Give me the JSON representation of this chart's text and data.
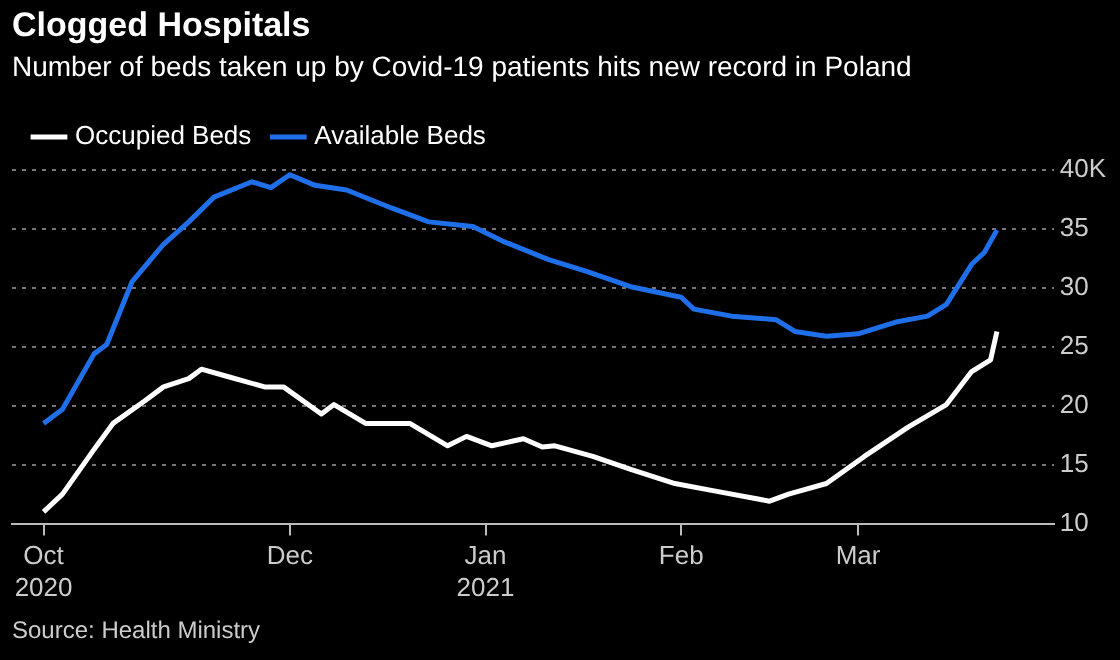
{
  "chart_data": {
    "type": "line",
    "title": "Clogged Hospitals",
    "subtitle": "Number of beds taken up by Covid-19 patients hits new record in Poland",
    "annotations": [
      "Source: Health Ministry"
    ],
    "xlim": [
      "2020-10-18",
      "2021-04-01"
    ],
    "xticks": [
      {
        "value": "2020-10-23",
        "label": "Oct 2020"
      },
      {
        "value": "2020-12-01",
        "label": "Dec"
      },
      {
        "value": "2021-01-01",
        "label": "Jan 2021"
      },
      {
        "value": "2021-02-01",
        "label": "Feb"
      },
      {
        "value": "2021-03-01",
        "label": "Mar"
      }
    ],
    "ylim": [
      10,
      40
    ],
    "yticks": [
      10,
      15,
      20,
      25,
      30,
      35,
      {
        "value": 40,
        "label": "40K"
      }
    ],
    "grid": "y",
    "legend": "top left",
    "marker": "none",
    "line_style": "solid",
    "series": [
      {
        "name": "Occupied Beds",
        "color": "#ffffff",
        "x": [
          "2020-10-23",
          "2020-10-26",
          "2020-10-31",
          "2020-11-03",
          "2020-11-08",
          "2020-11-11",
          "2020-11-15",
          "2020-11-17",
          "2020-11-21",
          "2020-11-27",
          "2020-11-30",
          "2020-12-06",
          "2020-12-08",
          "2020-12-13",
          "2020-12-20",
          "2020-12-26",
          "2020-12-29",
          "2021-01-02",
          "2021-01-07",
          "2021-01-10",
          "2021-01-12",
          "2021-01-18",
          "2021-01-24",
          "2021-01-31",
          "2021-02-06",
          "2021-02-15",
          "2021-02-18",
          "2021-02-24",
          "2021-03-02",
          "2021-03-09",
          "2021-03-15",
          "2021-03-19",
          "2021-03-22",
          "2021-03-23"
        ],
        "values": [
          11.0,
          12.5,
          16.3,
          18.5,
          20.4,
          21.6,
          22.3,
          23.1,
          22.5,
          21.6,
          21.6,
          19.3,
          20.1,
          18.5,
          18.5,
          16.6,
          17.4,
          16.6,
          17.2,
          16.5,
          16.6,
          15.7,
          14.6,
          13.4,
          12.8,
          11.9,
          12.5,
          13.4,
          15.7,
          18.2,
          20.1,
          22.9,
          23.9,
          26.3
        ]
      },
      {
        "name": "Available Beds",
        "color": "#1f6fe8",
        "x": [
          "2020-10-23",
          "2020-10-26",
          "2020-10-31",
          "2020-11-02",
          "2020-11-06",
          "2020-11-11",
          "2020-11-15",
          "2020-11-19",
          "2020-11-25",
          "2020-11-28",
          "2020-12-01",
          "2020-12-05",
          "2020-12-10",
          "2020-12-17",
          "2020-12-23",
          "2020-12-30",
          "2021-01-04",
          "2021-01-11",
          "2021-01-17",
          "2021-01-24",
          "2021-02-01",
          "2021-02-03",
          "2021-02-09",
          "2021-02-16",
          "2021-02-19",
          "2021-02-24",
          "2021-03-01",
          "2021-03-07",
          "2021-03-12",
          "2021-03-15",
          "2021-03-19",
          "2021-03-21",
          "2021-03-23"
        ],
        "values": [
          18.5,
          19.7,
          24.4,
          25.2,
          30.5,
          33.7,
          35.6,
          37.7,
          39.0,
          38.5,
          39.6,
          38.7,
          38.3,
          36.8,
          35.6,
          35.2,
          33.9,
          32.4,
          31.4,
          30.1,
          29.2,
          28.2,
          27.6,
          27.3,
          26.3,
          25.9,
          26.1,
          27.1,
          27.6,
          28.6,
          32.0,
          33.0,
          34.9
        ]
      }
    ]
  }
}
